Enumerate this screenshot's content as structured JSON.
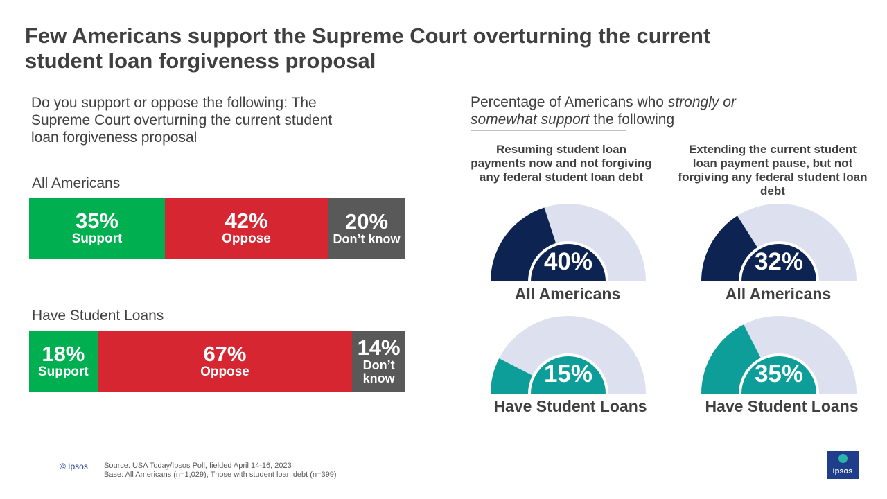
{
  "title": {
    "line1": "Few Americans support the Supreme Court overturning the current",
    "line2": "student loan forgiveness proposal"
  },
  "left_question": {
    "line1": "Do you support or oppose the following: The",
    "line2": "Supreme Court overturning the current student",
    "line3": "loan forgiveness proposal"
  },
  "right_question": {
    "part1": "Percentage  of Americans  who ",
    "part2_italic": "strongly  or",
    "part3_italic": "somewhat support",
    "part4": " the following"
  },
  "colors": {
    "support": "#00b050",
    "oppose": "#d62631",
    "dont_know": "#595959",
    "navy": "#0d2352",
    "teal": "#0e9e9a",
    "track": "#dde1ef",
    "text": "#404040"
  },
  "chart_data": [
    {
      "type": "bar",
      "stacked": true,
      "orientation": "horizontal",
      "categories": [
        "All Americans",
        "Have Student Loans"
      ],
      "series": [
        {
          "name": "Support",
          "values": [
            35,
            18
          ],
          "labels": [
            "Support",
            "Support"
          ]
        },
        {
          "name": "Oppose",
          "values": [
            42,
            67
          ],
          "labels": [
            "Oppose",
            "Oppose"
          ]
        },
        {
          "name": "Don't know",
          "values": [
            20,
            14
          ],
          "labels": [
            "Don’t know",
            "Don’t know"
          ]
        }
      ],
      "value_labels": [
        [
          "35%",
          "42%",
          "20%"
        ],
        [
          "18%",
          "67%",
          "14%"
        ]
      ],
      "dont_know_label_lines": [
        "Don’t",
        "know"
      ]
    },
    {
      "type": "gauge",
      "columns": [
        "Resuming student loan payments now and not forgiving any federal student loan debt",
        "Extending the current student loan payment pause, but not forgiving any federal student loan debt"
      ],
      "column_lines": [
        [
          "Resuming student loan",
          "payments now and not forgiving",
          "any federal student loan debt"
        ],
        [
          "Extending the current student",
          "loan payment pause, but not",
          "forgiving any federal student loan",
          "debt"
        ]
      ],
      "rows": [
        "All Americans",
        "Have Student Loans"
      ],
      "values": [
        [
          40,
          32
        ],
        [
          15,
          35
        ]
      ],
      "value_labels": [
        [
          "40%",
          "32%"
        ],
        [
          "15%",
          "35%"
        ]
      ],
      "max": 100
    }
  ],
  "footer": {
    "copyright": "© Ipsos",
    "source": "Source: USA Today/Ipsos Poll, fielded April 14-16, 2023",
    "base": "Base: All Americans (n=1,029), Those with student loan debt (n=399)",
    "logo_text": "Ipsos"
  }
}
